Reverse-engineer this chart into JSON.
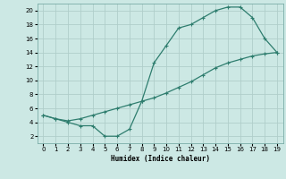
{
  "xlabel": "Humidex (Indice chaleur)",
  "upper_x": [
    0,
    1,
    2,
    3,
    4,
    5,
    6,
    7,
    8,
    9,
    10,
    11,
    12,
    13,
    14,
    15,
    16,
    17,
    18,
    19
  ],
  "upper_y": [
    5,
    4.5,
    4,
    3.5,
    3.5,
    2,
    2,
    3,
    7,
    12.5,
    15,
    17.5,
    18,
    19,
    20,
    20.5,
    20.5,
    19,
    16,
    14
  ],
  "lower_x": [
    0,
    1,
    2,
    3,
    4,
    5,
    6,
    7,
    8,
    9,
    10,
    11,
    12,
    13,
    14,
    15,
    16,
    17,
    18,
    19
  ],
  "lower_y": [
    5,
    4.5,
    4.2,
    4.5,
    5,
    5.5,
    6,
    6.5,
    7,
    7.5,
    8.2,
    9,
    9.8,
    10.8,
    11.8,
    12.5,
    13,
    13.5,
    13.8,
    14
  ],
  "line_color": "#2e7d6e",
  "bg_color": "#cce8e4",
  "grid_color": "#b0ceca",
  "xlim": [
    -0.5,
    19.5
  ],
  "ylim": [
    1,
    21
  ],
  "yticks": [
    2,
    4,
    6,
    8,
    10,
    12,
    14,
    16,
    18,
    20
  ],
  "xticks": [
    0,
    1,
    2,
    3,
    4,
    5,
    6,
    7,
    8,
    9,
    10,
    11,
    12,
    13,
    14,
    15,
    16,
    17,
    18,
    19
  ]
}
